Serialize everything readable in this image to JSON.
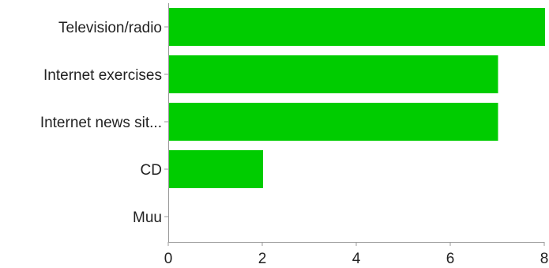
{
  "chart_data": {
    "type": "bar",
    "orientation": "horizontal",
    "categories": [
      "Television/radio",
      "Internet exercises",
      "Internet news sit...",
      "CD",
      "Muu"
    ],
    "values": [
      8,
      7,
      7,
      2,
      0
    ],
    "xlim": [
      0,
      8
    ],
    "xticks": [
      "0",
      "2",
      "4",
      "6",
      "8"
    ],
    "grid": false,
    "legend": "none",
    "bar_color": "#00cc00",
    "axis_color": "#999999"
  }
}
